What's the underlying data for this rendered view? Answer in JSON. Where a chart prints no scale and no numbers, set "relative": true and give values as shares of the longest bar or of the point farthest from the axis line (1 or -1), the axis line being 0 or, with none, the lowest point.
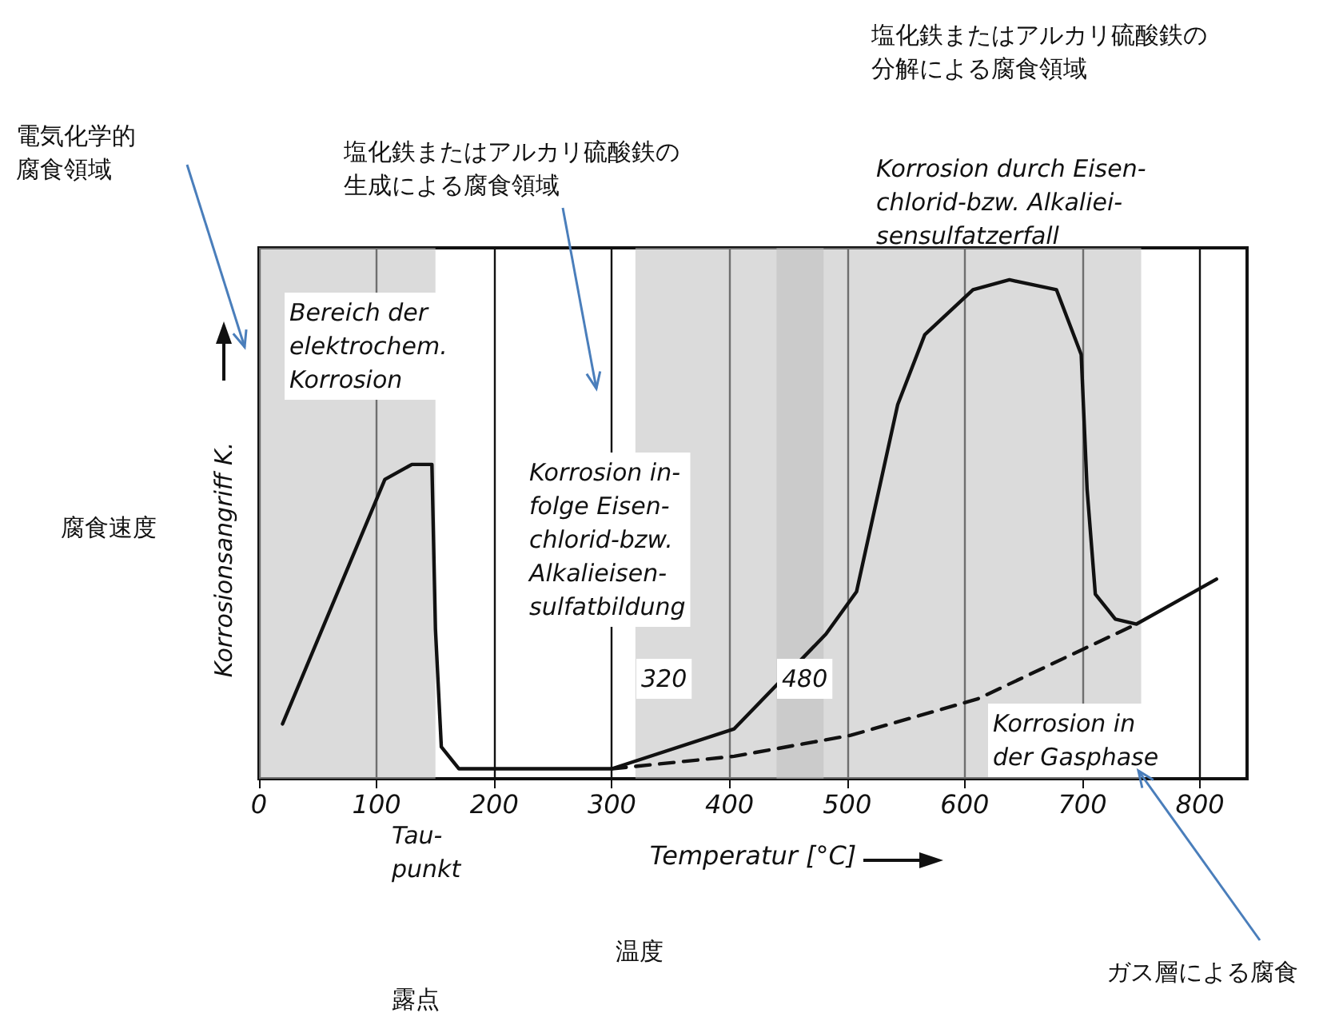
{
  "chart_data": {
    "type": "line",
    "relative": true,
    "xlabel": "Temperatur [°C]",
    "ylabel": "Korrosionsangriff K.",
    "xlim": [
      0,
      840
    ],
    "xticks": [
      0,
      100,
      200,
      300,
      400,
      500,
      600,
      700,
      800
    ],
    "grid": "x",
    "marker": "none",
    "series": [
      {
        "color": "#111111",
        "line_style": "solid",
        "x": [
          20,
          107,
          130,
          147,
          150,
          155,
          170,
          300,
          404,
          482,
          508,
          543,
          566,
          607,
          638,
          678,
          699,
          704,
          711,
          728,
          746,
          814
        ],
        "values": [
          0.11,
          0.6,
          0.63,
          0.63,
          0.3,
          0.064,
          0.02,
          0.02,
          0.1,
          0.29,
          0.375,
          0.75,
          0.89,
          0.98,
          1.0,
          0.98,
          0.85,
          0.58,
          0.37,
          0.32,
          0.31,
          0.4
        ]
      },
      {
        "color": "#111111",
        "line_style": "dashed",
        "x": [
          300,
          404,
          503,
          611,
          701,
          746
        ],
        "values": [
          0.02,
          0.045,
          0.087,
          0.16,
          0.26,
          0.31
        ]
      }
    ],
    "bands": [
      {
        "axis": "x",
        "from": 0,
        "to": 150,
        "color": "#bdbdbd"
      },
      {
        "axis": "x",
        "from": 320,
        "to": 480,
        "color": "#bdbdbd"
      },
      {
        "axis": "x",
        "from": 440,
        "to": 750,
        "color": "#bdbdbd"
      }
    ],
    "annotations": [
      "電気化学的腐食領域",
      "塩化鉄またはアルカリ硫酸鉄の生成による腐食領域",
      "塩化鉄またはアルカリ硫酸鉄の分解による腐食領域",
      "Korrosion durch Eisen-\nchlorid-bzw. Alkaliei-\nsensulfatzerfall",
      "Bereich der\nelektrochem.\nKorrosion",
      "Korrosion in-\nfolge Eisen-\nchlorid-bzw.\nAlkalieisen-\nsulfatbildung",
      "Korrosion in\nder Gasphase",
      "Tau-\npunkt",
      "腐食速度",
      "温度",
      "露点",
      "ガス層による腐食",
      "320",
      "480"
    ]
  }
}
